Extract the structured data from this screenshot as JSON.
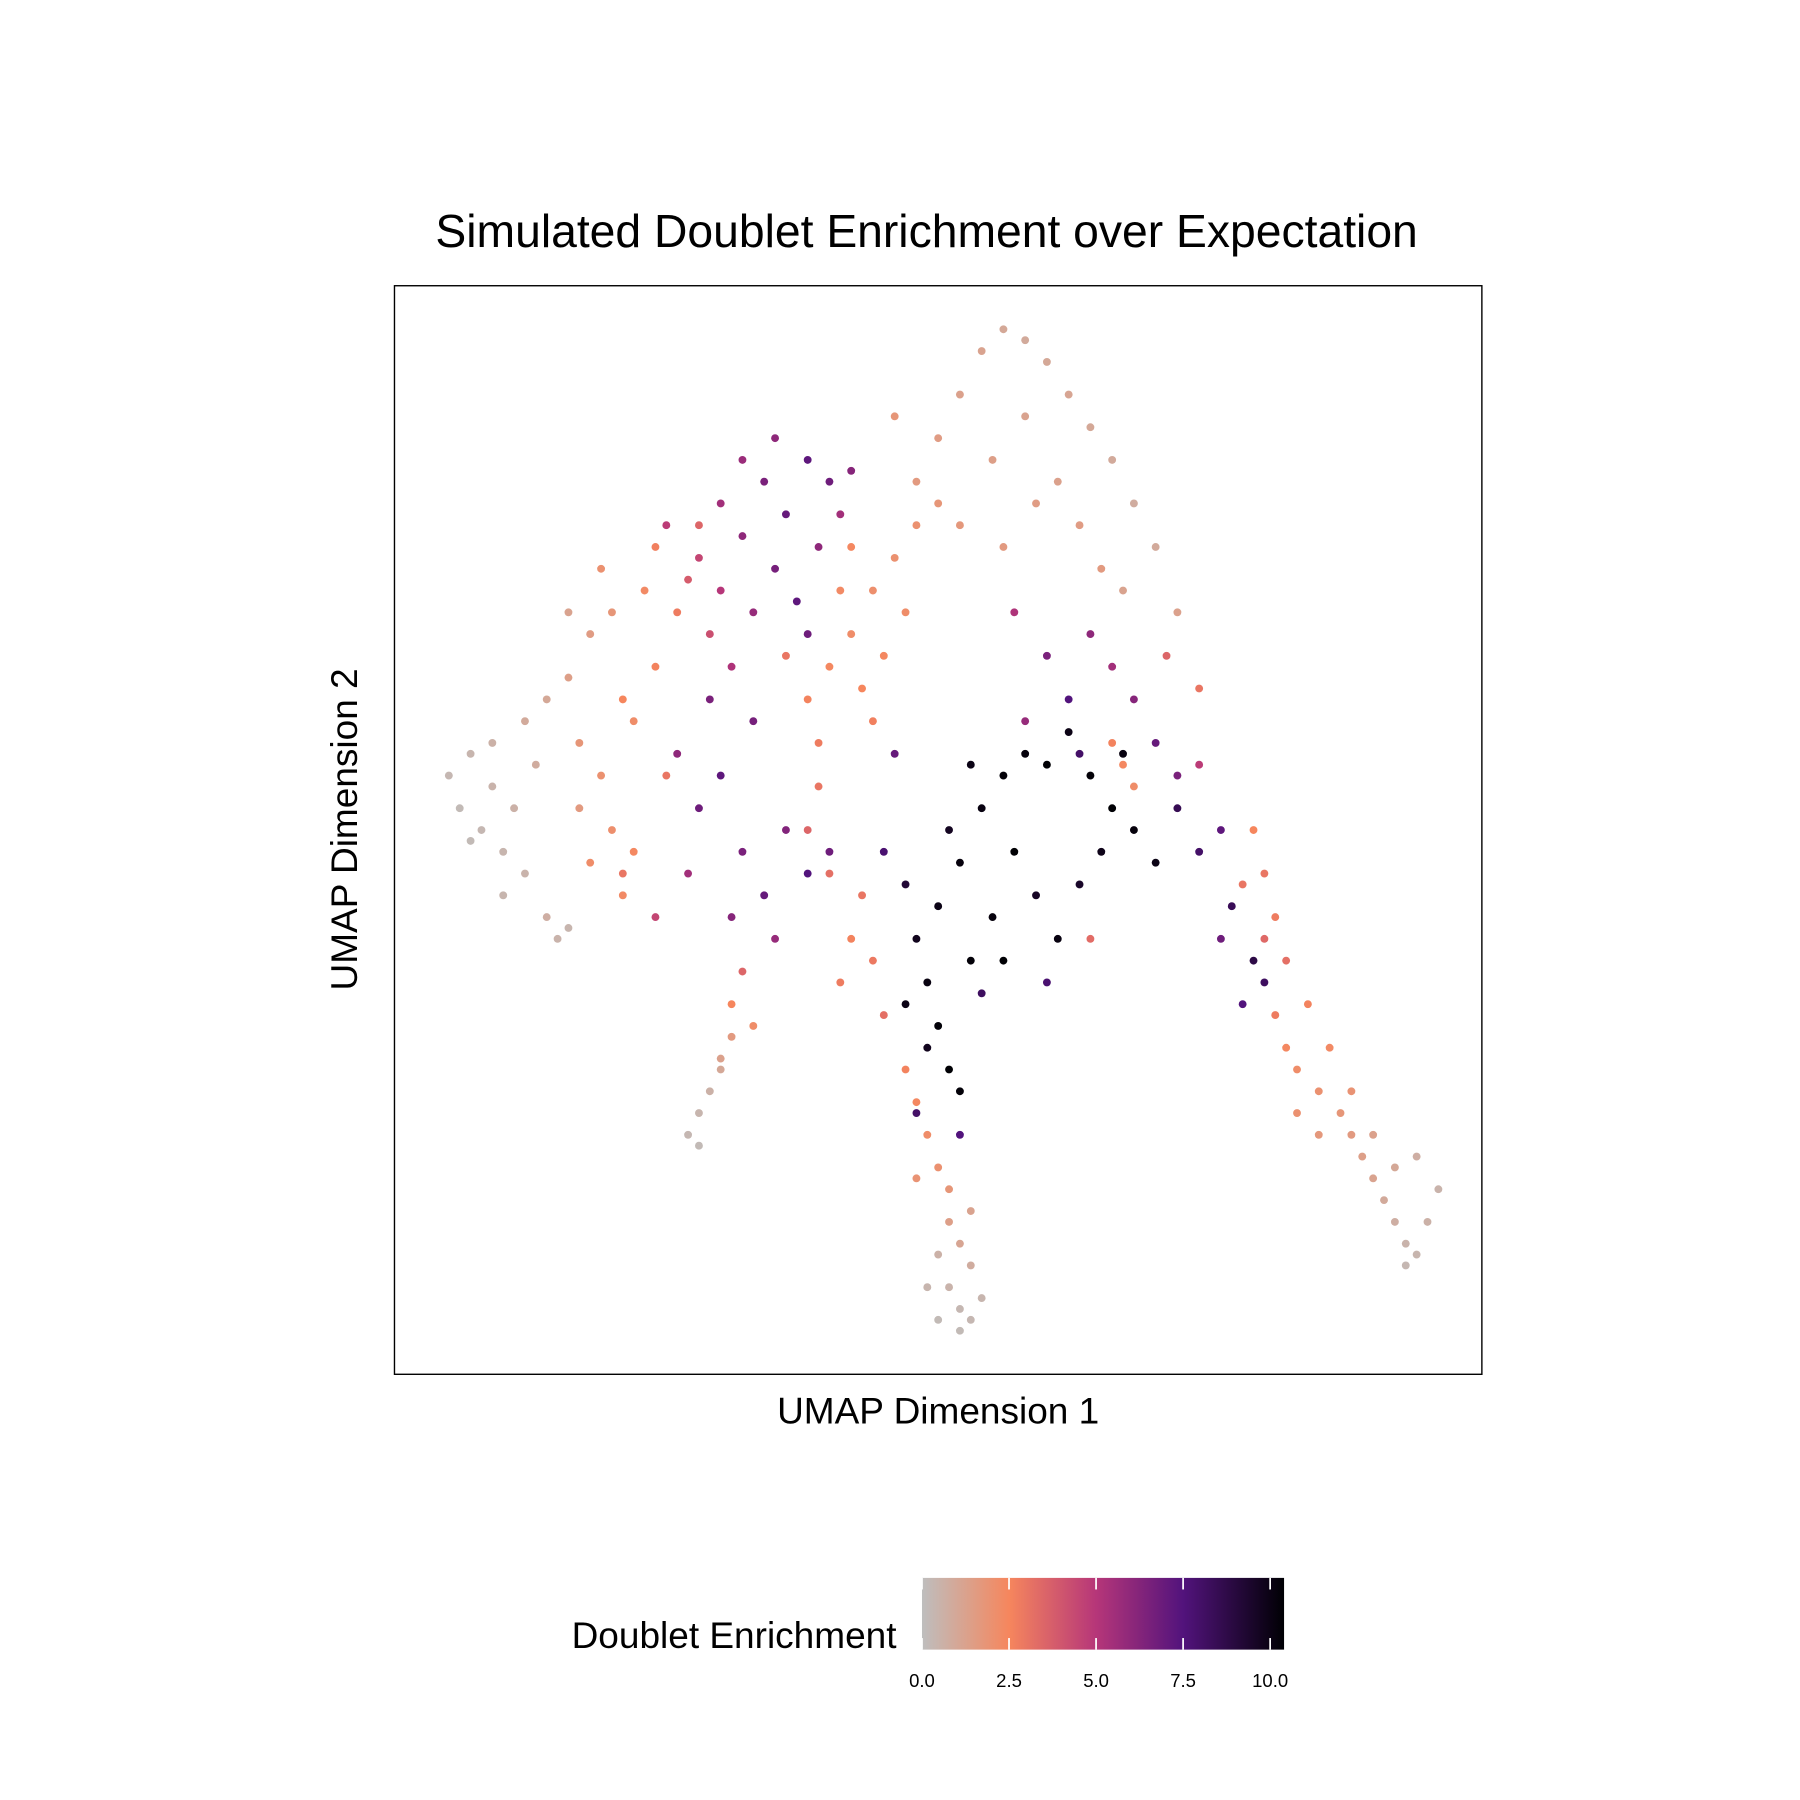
{
  "chart_data": {
    "type": "scatter",
    "title": "Simulated Doublet Enrichment over Expectation",
    "x_label": "UMAP Dimension 1",
    "y_label": "UMAP Dimension 2",
    "xlim": [
      0,
      100
    ],
    "ylim": [
      0,
      100
    ],
    "x": [
      5,
      6,
      7,
      8,
      9,
      10,
      11,
      12,
      7,
      9,
      13,
      14,
      15,
      16,
      10,
      12,
      14,
      16,
      18,
      17,
      19,
      20,
      18,
      21,
      22,
      20,
      23,
      24,
      25,
      22,
      17,
      26,
      24,
      19,
      28,
      21,
      16,
      25,
      28,
      30,
      32,
      34,
      36,
      38,
      40,
      42,
      30,
      33,
      35,
      37,
      39,
      29,
      31,
      27,
      41,
      35,
      32,
      38,
      29,
      38,
      40,
      42,
      44,
      46,
      41,
      43,
      39,
      45,
      47,
      44,
      36,
      48,
      42,
      48,
      50,
      52,
      54,
      56,
      58,
      60,
      62,
      64,
      66,
      68,
      70,
      55,
      58,
      61,
      63,
      52,
      56,
      59,
      67,
      65,
      50,
      46,
      72,
      57,
      60,
      62,
      64,
      66,
      68,
      70,
      72,
      74,
      63,
      58,
      71,
      74,
      47,
      48,
      49,
      50,
      51,
      50,
      52,
      53,
      51,
      54,
      56,
      58,
      60,
      62,
      64,
      66,
      65,
      68,
      70,
      57,
      55,
      59,
      61,
      47,
      49,
      52,
      56,
      53,
      63,
      67,
      45,
      46,
      48,
      52,
      54,
      60,
      72,
      74,
      76,
      77,
      79,
      78,
      76,
      80,
      26,
      28,
      30,
      32,
      34,
      36,
      38,
      40,
      31,
      35,
      27,
      33,
      24,
      21,
      41,
      42,
      43,
      40,
      44,
      45,
      38,
      39,
      64,
      66,
      68,
      67,
      47,
      48,
      49,
      50,
      51,
      51,
      52,
      53,
      51,
      52,
      50,
      53,
      54,
      49,
      52,
      50,
      53,
      48,
      27,
      28,
      29,
      30,
      31,
      31,
      32,
      28,
      30,
      33,
      79,
      80,
      81,
      82,
      81,
      82,
      84,
      83,
      85,
      86,
      87,
      88,
      89,
      90,
      91,
      92,
      93,
      94,
      95,
      96,
      92,
      90,
      88,
      94,
      85,
      83,
      80,
      78,
      93
    ],
    "y": [
      55,
      52,
      57,
      50,
      54,
      48,
      52,
      46,
      49,
      58,
      56,
      42,
      40,
      41,
      44,
      60,
      62,
      64,
      68,
      58,
      55,
      50,
      47,
      44,
      60,
      70,
      72,
      65,
      55,
      48,
      52,
      70,
      76,
      74,
      78,
      62,
      70,
      78,
      75,
      80,
      77,
      82,
      79,
      84,
      82,
      83,
      72,
      70,
      74,
      71,
      76,
      68,
      65,
      73,
      79,
      86,
      84,
      68,
      62,
      62,
      65,
      68,
      72,
      75,
      72,
      63,
      58,
      66,
      70,
      60,
      66,
      78,
      76,
      82,
      86,
      90,
      94,
      96,
      95,
      93,
      90,
      87,
      84,
      80,
      76,
      84,
      88,
      82,
      78,
      78,
      76,
      80,
      72,
      74,
      80,
      88,
      70,
      70,
      66,
      62,
      68,
      65,
      62,
      58,
      55,
      56,
      57,
      60,
      66,
      63,
      45,
      40,
      36,
      32,
      28,
      43,
      47,
      38,
      50,
      52,
      55,
      57,
      56,
      59,
      55,
      52,
      48,
      50,
      47,
      48,
      42,
      44,
      40,
      34,
      30,
      26,
      38,
      56,
      45,
      57,
      48,
      57,
      24,
      22,
      35,
      36,
      52,
      48,
      50,
      43,
      38,
      34,
      40,
      36,
      57,
      52,
      55,
      48,
      44,
      50,
      46,
      48,
      42,
      40,
      46,
      60,
      42,
      46,
      36,
      40,
      44,
      46,
      38,
      33,
      50,
      54,
      40,
      58,
      54,
      56,
      28,
      25,
      22,
      19,
      17,
      14,
      12,
      10,
      8,
      6,
      5,
      5,
      7,
      8,
      4,
      11,
      15,
      18,
      22,
      24,
      26,
      28,
      31,
      34,
      37,
      21,
      29,
      32,
      50,
      46,
      42,
      38,
      33,
      30,
      34,
      28,
      26,
      30,
      24,
      22,
      20,
      18,
      16,
      14,
      12,
      11,
      14,
      17,
      19,
      22,
      26,
      20,
      22,
      24,
      40,
      45,
      10
    ],
    "values": [
      0.3,
      0.2,
      0.4,
      0.3,
      0.5,
      0.4,
      0.6,
      0.5,
      0.2,
      0.6,
      0.8,
      0.7,
      0.5,
      0.4,
      0.4,
      0.9,
      1.0,
      1.4,
      1.5,
      1.8,
      2.0,
      2.1,
      2.2,
      2.3,
      2.2,
      1.8,
      2.3,
      2.6,
      3.0,
      2.4,
      1.6,
      2.8,
      2.7,
      2.0,
      3.5,
      2.5,
      1.2,
      4.8,
      4.5,
      5.5,
      6.0,
      6.5,
      7.0,
      7.2,
      6.8,
      6.2,
      5.0,
      5.8,
      6.6,
      7.2,
      6.0,
      4.2,
      5.2,
      3.8,
      5.5,
      6.0,
      5.7,
      6.8,
      6.5,
      2.6,
      2.4,
      2.2,
      2.1,
      2.0,
      2.3,
      2.5,
      2.8,
      2.4,
      2.2,
      2.7,
      3.0,
      2.0,
      2.4,
      1.6,
      1.5,
      1.3,
      1.2,
      1.0,
      0.9,
      1.0,
      1.1,
      1.0,
      0.9,
      0.8,
      0.9,
      1.4,
      1.2,
      1.3,
      1.5,
      1.7,
      1.6,
      1.5,
      1.2,
      1.6,
      1.8,
      1.8,
      1.3,
      5.2,
      6.5,
      7.5,
      6.0,
      5.5,
      6.2,
      7.0,
      6.5,
      4.8,
      8.0,
      5.8,
      3.5,
      3.0,
      9.2,
      9.8,
      10.1,
      10.3,
      10.4,
      10.0,
      10.2,
      10.3,
      9.7,
      10.1,
      10.3,
      10.2,
      10.4,
      10.0,
      10.3,
      10.4,
      9.9,
      10.2,
      10.0,
      10.4,
      10.2,
      9.6,
      10.1,
      10.0,
      9.8,
      10.3,
      10.4,
      10.0,
      9.5,
      10.1,
      7.8,
      7.0,
      8.0,
      7.5,
      8.2,
      7.8,
      8.5,
      8.0,
      7.2,
      8.4,
      8.8,
      7.5,
      6.8,
      8.2,
      6.0,
      6.8,
      7.2,
      6.5,
      7.0,
      6.3,
      7.5,
      6.8,
      6.2,
      5.8,
      5.5,
      6.6,
      4.5,
      3.0,
      2.8,
      2.6,
      3.0,
      3.2,
      2.9,
      3.2,
      3.5,
      3.0,
      3.3,
      2.6,
      2.2,
      2.4,
      2.6,
      2.4,
      2.2,
      2.0,
      1.8,
      1.4,
      1.1,
      0.8,
      0.5,
      0.3,
      0.2,
      0.3,
      0.4,
      0.4,
      0.2,
      0.6,
      1.2,
      1.9,
      0.3,
      0.4,
      0.6,
      1.0,
      1.6,
      2.5,
      3.5,
      0.2,
      1.3,
      2.2,
      2.5,
      3.0,
      2.8,
      3.2,
      2.8,
      2.4,
      2.6,
      2.2,
      2.0,
      2.3,
      1.8,
      1.6,
      1.4,
      1.2,
      0.9,
      0.7,
      0.5,
      0.4,
      0.6,
      0.5,
      1.0,
      1.3,
      1.9,
      0.7,
      1.7,
      2.0,
      3.4,
      3.0,
      0.3
    ],
    "colorbar": {
      "title": "Doublet Enrichment",
      "lim": [
        0,
        10.4
      ],
      "ticks": [
        {
          "value": 0,
          "label": "0.0"
        },
        2.5,
        {
          "value": 5,
          "label": "5.0"
        },
        7.5,
        {
          "value": 10,
          "label": "10.0"
        }
      ],
      "stops": [
        {
          "value": 0,
          "color": "#bebebe"
        },
        {
          "value": 2.5,
          "color": "#f6865d"
        },
        {
          "value": 5,
          "color": "#b63679"
        },
        {
          "value": 7.5,
          "color": "#52137c"
        },
        {
          "value": 10.4,
          "color": "#000004"
        }
      ]
    }
  }
}
